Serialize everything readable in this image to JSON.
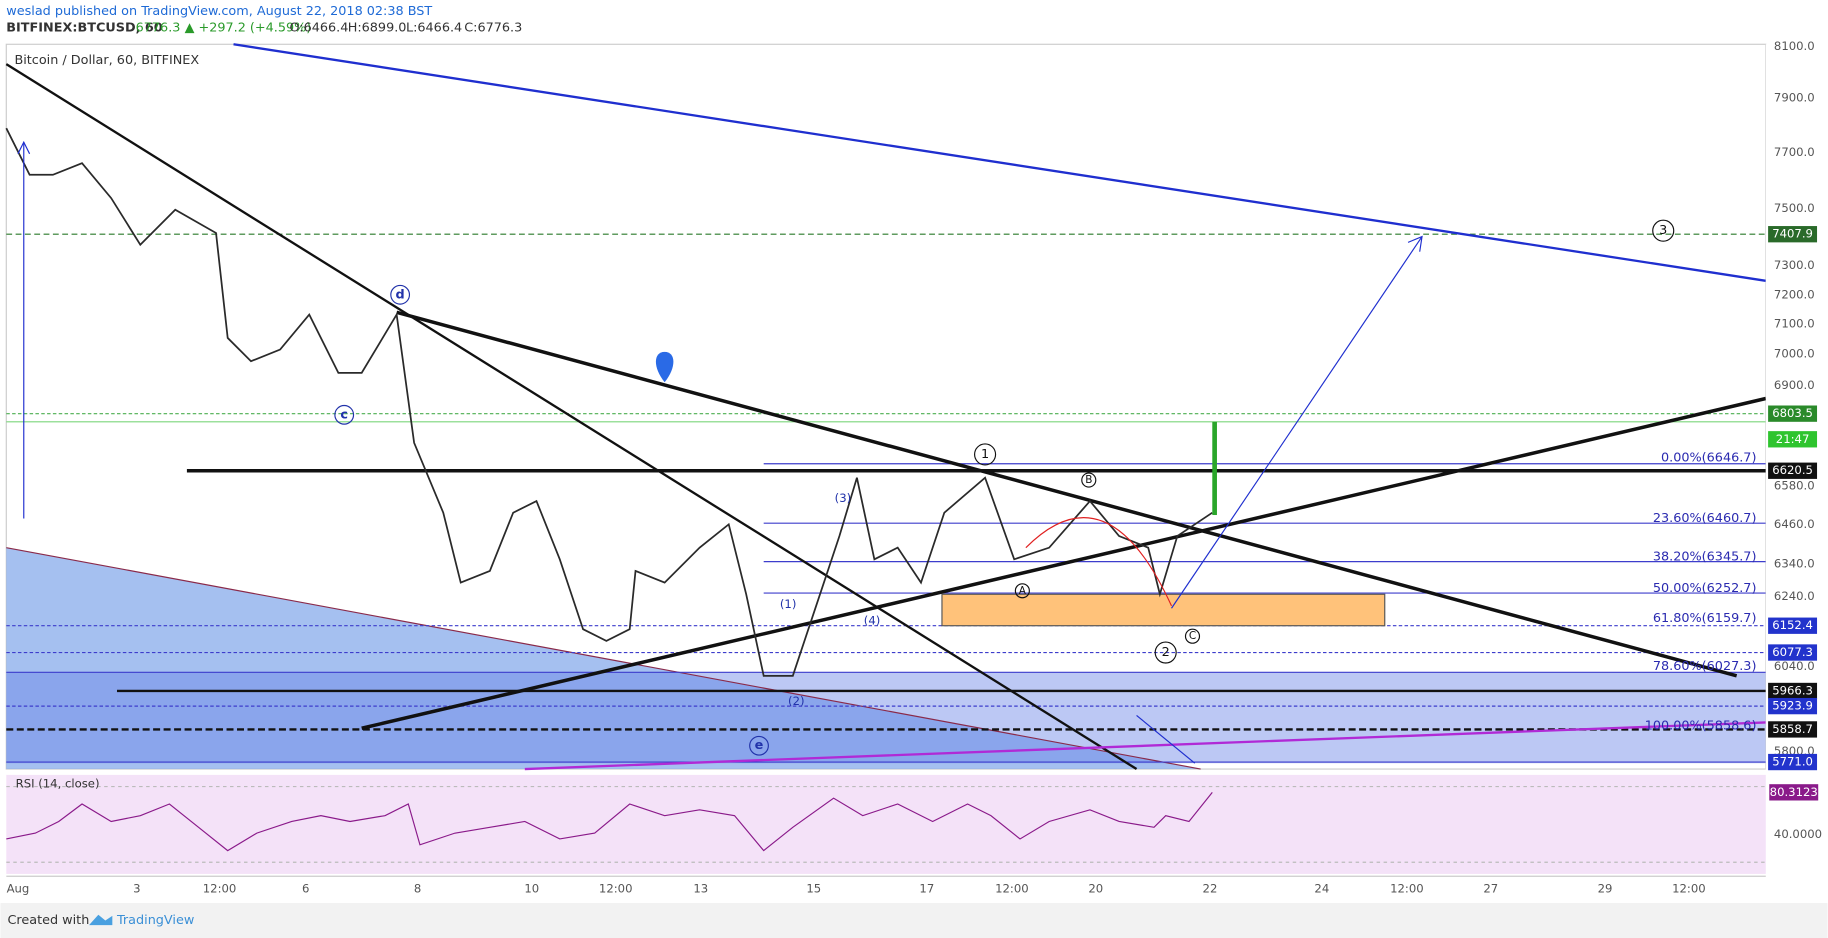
{
  "header": {
    "publisher": "weslad published on TradingView.com, August 22, 2018 02:38 BST",
    "symbol": "BITFINEX:BTCUSD, 60",
    "last": "6776.3",
    "change": "▲ +297.2 (+4.59%)",
    "open": "O:6466.4",
    "high": "H:6899.0",
    "low": "L:6466.4",
    "close": "C:6776.3"
  },
  "chart": {
    "legend": "Bitcoin / Dollar, 60, BITFINEX",
    "price_axis": [
      "8100.0",
      "7900.0",
      "7700.0",
      "7500.0",
      "7300.0",
      "7200.0",
      "7100.0",
      "7000.0",
      "6900.0",
      "6580.0",
      "6460.0",
      "6340.0",
      "6240.0",
      "6040.0",
      "5800.0"
    ],
    "price_tags": [
      "7407.9",
      "6803.5",
      "21:47",
      "6620.5",
      "6152.4",
      "6077.3",
      "5966.3",
      "5923.9",
      "5858.7",
      "5771.0"
    ],
    "time_axis": [
      "Aug",
      "3",
      "12:00",
      "6",
      "8",
      "10",
      "12:00",
      "13",
      "15",
      "17",
      "12:00",
      "20",
      "22",
      "24",
      "12:00",
      "27",
      "29",
      "12:00"
    ],
    "fib_labels": [
      "0.00%(6646.7)",
      "23.60%(6460.7)",
      "38.20%(6345.7)",
      "50.00%(6252.7)",
      "61.80%(6159.7)",
      "78.60%(6027.3)",
      "100.00%(5858.6)"
    ],
    "wave_labels": [
      "d",
      "c",
      "e",
      "1",
      "2",
      "3",
      "A",
      "B",
      "C",
      "(1)",
      "(2)",
      "(3)",
      "(4)"
    ]
  },
  "rsi": {
    "label": "RSI (14, close)",
    "value_tag": "80.3123",
    "axis_label": "40.0000"
  },
  "footer": {
    "created": "Created with",
    "brand": "TradingView"
  }
}
